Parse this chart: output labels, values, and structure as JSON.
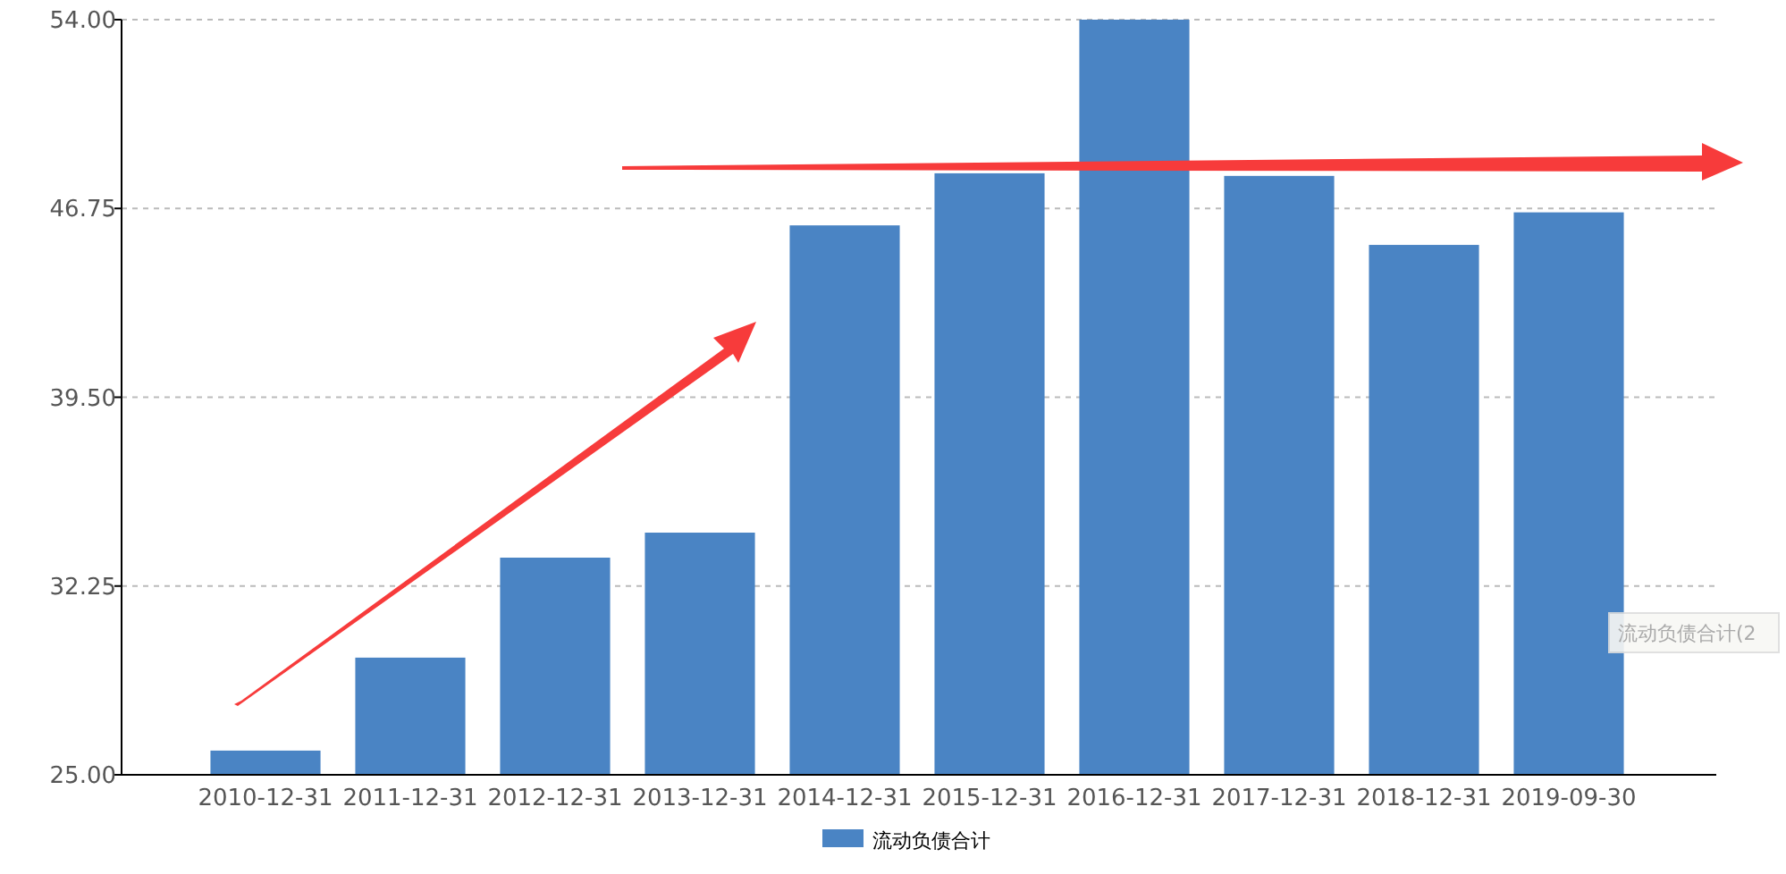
{
  "chart_data": {
    "type": "bar",
    "categories": [
      "2010-12-31",
      "2011-12-31",
      "2012-12-31",
      "2013-12-31",
      "2014-12-31",
      "2015-12-31",
      "2016-12-31",
      "2017-12-31",
      "2018-12-31",
      "2019-09-30"
    ],
    "series": [
      {
        "name": "流动负债合计",
        "color": "#4a84c4",
        "values": [
          25.93,
          29.5,
          33.34,
          34.3,
          46.1,
          48.1,
          54.0,
          48.0,
          45.35,
          46.6
        ]
      }
    ],
    "ylim": [
      25,
      54
    ],
    "yticks": [
      {
        "value": 25,
        "label": "25.00"
      },
      {
        "value": 32.25,
        "label": "32.25"
      },
      {
        "value": 39.5,
        "label": "39.50"
      },
      {
        "value": 46.75,
        "label": "46.75"
      },
      {
        "value": 54,
        "label": "54.00"
      }
    ],
    "grid": "y",
    "legend": "bottom",
    "annotations": [
      "流动负债合计(2"
    ]
  }
}
